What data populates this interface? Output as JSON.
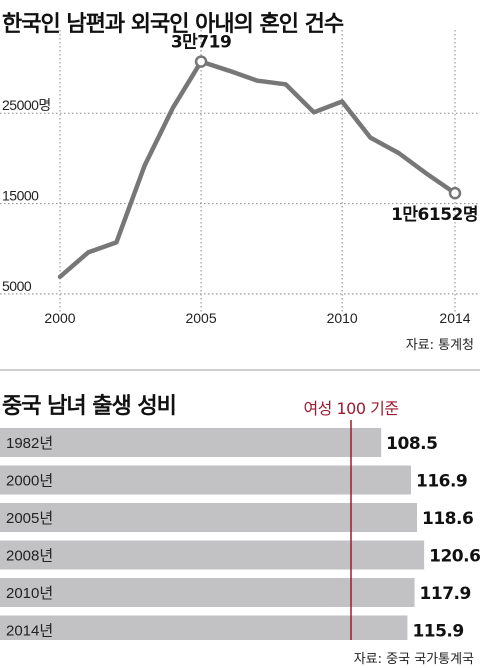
{
  "chart_data": [
    {
      "type": "line",
      "title": "한국인 남편과 외국인 아내의 혼인 건수",
      "source": "자료: 통계청",
      "x": [
        2000,
        2001,
        2002,
        2003,
        2004,
        2005,
        2006,
        2007,
        2008,
        2009,
        2010,
        2011,
        2012,
        2013,
        2014
      ],
      "xticks": [
        "2000",
        "2005",
        "2010",
        "2014"
      ],
      "xtick_values": [
        2000,
        2005,
        2010,
        2014
      ],
      "yticks": [
        "25000명",
        "15000",
        "5000"
      ],
      "ytick_values": [
        25000,
        15000,
        5000
      ],
      "ylim": [
        3000,
        32000
      ],
      "xlim": [
        1999.5,
        2014.6
      ],
      "series": [
        {
          "values": [
            6900,
            9600,
            10700,
            19200,
            25600,
            30719,
            29700,
            28600,
            28200,
            25100,
            26300,
            22300,
            20600,
            18300,
            16152
          ]
        }
      ],
      "annotations": {
        "peak": "3만719",
        "last": "1만6152명"
      },
      "colors": {
        "line": "#777777",
        "marker_fill": "#ffffff",
        "grid": "#888888"
      }
    },
    {
      "type": "bar",
      "title": "중국 남녀 출생 성비",
      "source": "자료: 중국 국가통계국",
      "reference_label": "여성 100 기준",
      "reference_value": 100,
      "categories": [
        "1982년",
        "2000년",
        "2005년",
        "2008년",
        "2010년",
        "2014년"
      ],
      "values": [
        108.5,
        116.9,
        118.6,
        120.6,
        117.9,
        115.9
      ],
      "value_labels": [
        "108.5",
        "116.9",
        "118.6",
        "120.6",
        "117.9",
        "115.9"
      ],
      "colors": {
        "bar": "#c2c2c4",
        "reference": "#9b1b30",
        "value_text": "#111111"
      }
    }
  ]
}
